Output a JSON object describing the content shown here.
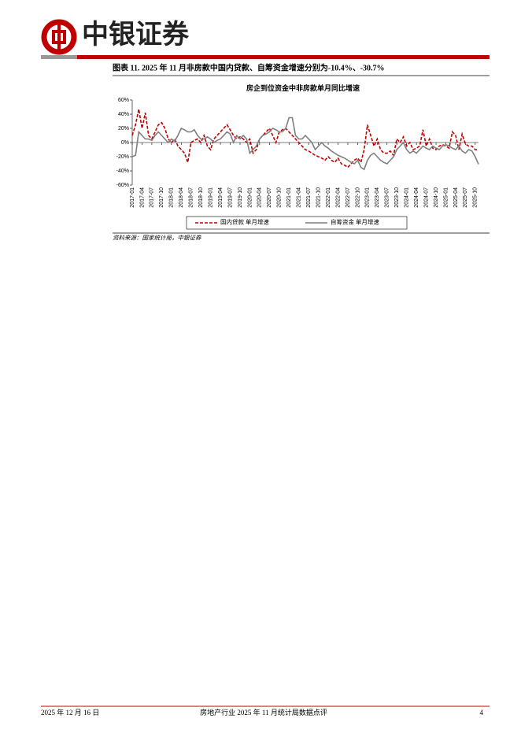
{
  "header": {
    "brand": "中银证券"
  },
  "caption": "图表 11. 2025 年 11 月非房款中国内贷款、自筹资金增速分别为-10.4%、-30.7%",
  "chart_data": {
    "type": "line",
    "title": "房企到位资金中非房款单月同比增速",
    "categories": [
      "2017-01",
      null,
      null,
      "2017-04",
      null,
      null,
      "2017-07",
      null,
      null,
      "2017-10",
      null,
      null,
      "2018-01",
      null,
      null,
      "2018-04",
      null,
      null,
      "2018-07",
      null,
      null,
      "2018-10",
      null,
      null,
      "2019-01",
      null,
      null,
      "2019-04",
      null,
      null,
      "2019-07",
      null,
      null,
      "2019-10",
      null,
      null,
      "2020-01",
      null,
      null,
      "2020-04",
      null,
      null,
      "2020-07",
      null,
      null,
      "2020-10",
      null,
      null,
      "2021-01",
      null,
      null,
      "2021-04",
      null,
      null,
      "2021-07",
      null,
      null,
      "2021-10",
      null,
      null,
      "2022-01",
      null,
      null,
      "2022-04",
      null,
      null,
      "2022-07",
      null,
      null,
      "2022-10",
      null,
      null,
      "2023-01",
      null,
      null,
      "2023-04",
      null,
      null,
      "2023-07",
      null,
      null,
      "2023-10",
      null,
      null,
      "2024-01",
      null,
      null,
      "2024-04",
      null,
      null,
      "2024-07",
      null,
      null,
      "2024-10",
      null,
      null,
      "2025-01",
      null,
      null,
      "2025-04",
      null,
      null,
      "2025-07",
      null,
      null,
      "2025-10",
      null
    ],
    "series": [
      {
        "name": "国内贷款 单月增速",
        "color": "#c00000",
        "dash": true,
        "values": [
          10,
          25,
          47,
          20,
          42,
          10,
          5,
          15,
          25,
          28,
          20,
          5,
          0,
          5,
          -5,
          -10,
          -15,
          -28,
          0,
          3,
          5,
          0,
          10,
          -5,
          -10,
          5,
          10,
          15,
          20,
          25,
          18,
          10,
          5,
          8,
          5,
          0,
          5,
          -15,
          -10,
          5,
          10,
          15,
          20,
          10,
          0,
          15,
          18,
          20,
          15,
          10,
          5,
          0,
          -5,
          -10,
          -12,
          -15,
          -18,
          -20,
          -22,
          -25,
          -20,
          -25,
          -28,
          -22,
          -30,
          -32,
          -35,
          -30,
          -25,
          -22,
          -28,
          -10,
          25,
          10,
          -5,
          5,
          -10,
          -15,
          -15,
          -12,
          -18,
          5,
          0,
          8,
          -5,
          0,
          -10,
          -8,
          -5,
          18,
          -5,
          5,
          -8,
          -10,
          -5,
          -3,
          -5,
          -8,
          15,
          10,
          -10,
          12,
          -2,
          -5,
          -5,
          -10,
          -10.4
        ]
      },
      {
        "name": "自筹资金 单月增速",
        "color": "#7f7f7f",
        "dash": false,
        "values": [
          -20,
          -18,
          15,
          10,
          5,
          5,
          3,
          10,
          15,
          10,
          5,
          0,
          5,
          2,
          10,
          20,
          18,
          15,
          15,
          18,
          10,
          5,
          5,
          8,
          5,
          0,
          3,
          5,
          10,
          15,
          12,
          0,
          10,
          5,
          10,
          5,
          -15,
          -10,
          -5,
          5,
          10,
          12,
          15,
          20,
          18,
          15,
          15,
          20,
          35,
          35,
          10,
          5,
          5,
          10,
          5,
          0,
          -10,
          -5,
          0,
          -5,
          -8,
          -12,
          -15,
          -18,
          -20,
          -22,
          -25,
          -28,
          -30,
          -25,
          -35,
          -38,
          -25,
          -18,
          -15,
          -20,
          -25,
          -28,
          -30,
          -25,
          -20,
          -10,
          -5,
          0,
          -10,
          -15,
          -12,
          -15,
          -10,
          -5,
          -8,
          -10,
          -5,
          -8,
          -10,
          -5,
          -3,
          -5,
          -8,
          -10,
          -5,
          -12,
          -15,
          -10,
          -12,
          -20,
          -30.7
        ]
      }
    ],
    "ylim": [
      -60,
      60
    ],
    "yticks": [
      {
        "value": -60,
        "label": "-60%"
      },
      {
        "value": -40,
        "label": "-40%"
      },
      {
        "value": -20,
        "label": "-20%"
      },
      {
        "value": 0,
        "label": "0%"
      },
      {
        "value": 20,
        "label": "20%"
      },
      {
        "value": 40,
        "label": "40%"
      },
      {
        "value": 60,
        "label": "60%"
      }
    ]
  },
  "source": "资料来源：国家统计局，中银证券",
  "footer": {
    "date": "2025 年 12 月 16 日",
    "title": "房地产行业 2025 年 11 月统计局数据点评",
    "page": "4"
  }
}
